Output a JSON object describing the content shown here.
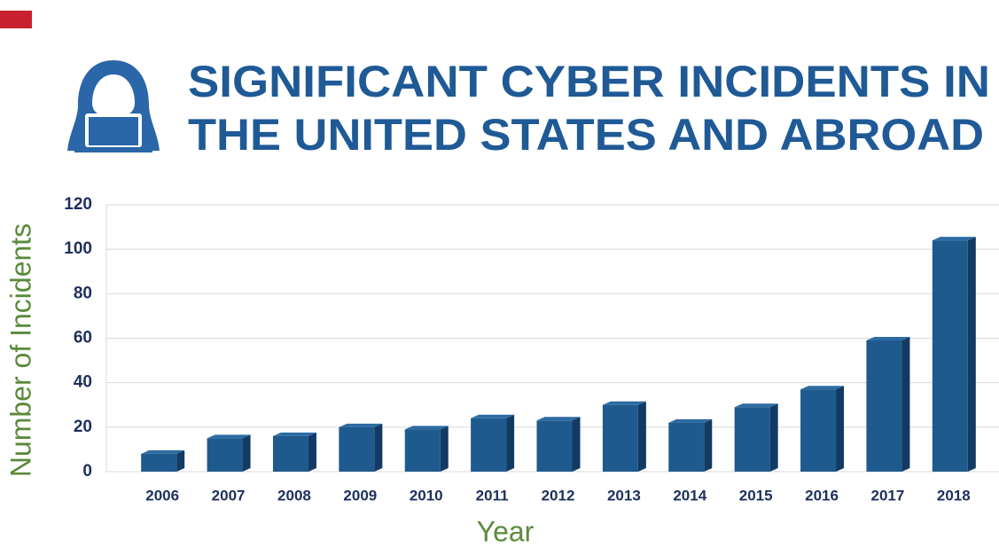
{
  "chart_data": {
    "type": "bar",
    "title": [
      "SIGNIFICANT CYBER INCIDENTS IN",
      "THE UNITED STATES AND ABROAD"
    ],
    "xlabel": "Year",
    "ylabel": "Number of Incidents",
    "categories": [
      "2006",
      "2007",
      "2008",
      "2009",
      "2010",
      "2011",
      "2012",
      "2013",
      "2014",
      "2015",
      "2016",
      "2017",
      "2018"
    ],
    "values": [
      8,
      15,
      16,
      20,
      19,
      24,
      23,
      30,
      22,
      29,
      37,
      59,
      104
    ],
    "color": "#1f5a8e",
    "ylim": [
      0,
      120
    ],
    "yticks": [
      0,
      20,
      40,
      60,
      80,
      100,
      120
    ],
    "grid": true
  }
}
